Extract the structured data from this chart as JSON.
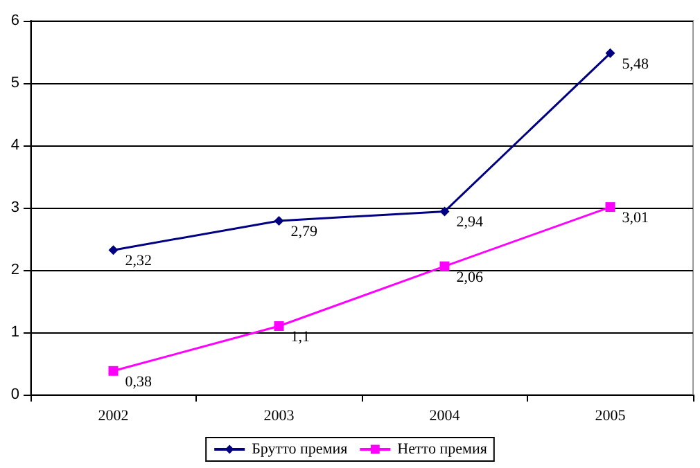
{
  "chart_data": {
    "type": "line",
    "categories": [
      "2002",
      "2003",
      "2004",
      "2005"
    ],
    "series": [
      {
        "name": "Брутто премия",
        "color": "#000080",
        "marker": "diamond",
        "values": [
          2.32,
          2.79,
          2.94,
          5.48
        ],
        "value_labels": [
          "2,32",
          "2,79",
          "2,94",
          "5,48"
        ]
      },
      {
        "name": "Нетто премия",
        "color": "#ff00ff",
        "marker": "square",
        "values": [
          0.38,
          1.1,
          2.06,
          3.01
        ],
        "value_labels": [
          "0,38",
          "1,1",
          "2,06",
          "3,01"
        ]
      }
    ],
    "ylim": [
      0,
      6
    ],
    "yticks": [
      0,
      1,
      2,
      3,
      4,
      5,
      6
    ],
    "grid": "y",
    "legend": "bottom"
  }
}
